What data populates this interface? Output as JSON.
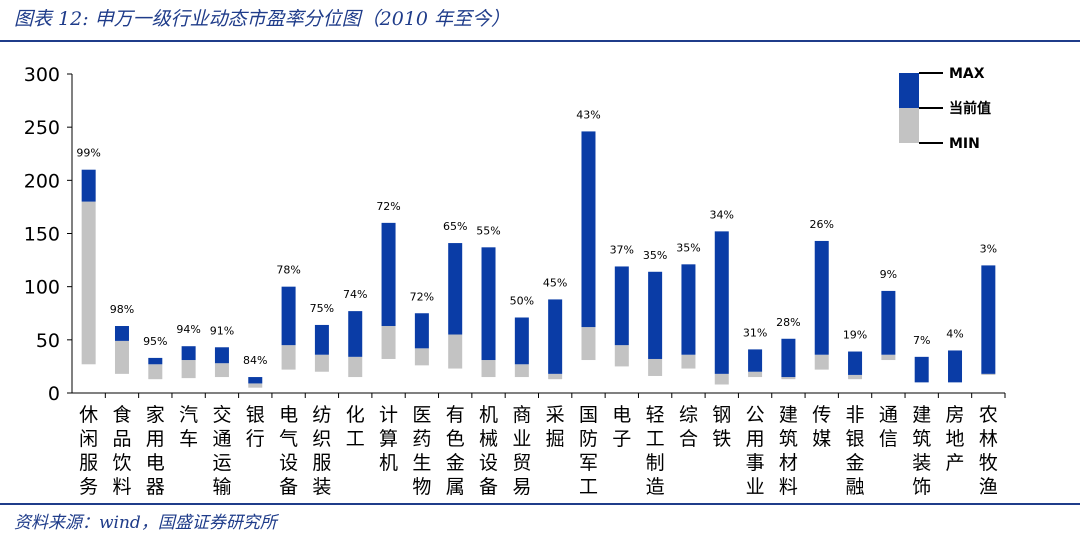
{
  "header": {
    "title": "图表 12:  申万一级行业动态市盈率分位图（2010 年至今）"
  },
  "footer": {
    "source": "资料来源：wind，国盛证券研究所"
  },
  "colors": {
    "max_segment": "#0a3ca6",
    "current_segment": "#c3c3c3",
    "text": "#000000",
    "brand": "#1f3c8a"
  },
  "chart_data": {
    "type": "bar",
    "ylim": [
      0,
      300
    ],
    "yticks": [
      0,
      50,
      100,
      150,
      200,
      250,
      300
    ],
    "legend": {
      "position": "top-right",
      "entries": [
        {
          "key": "max",
          "label": "MAX"
        },
        {
          "key": "current",
          "label": "当前值"
        },
        {
          "key": "min",
          "label": "MIN"
        }
      ]
    },
    "categories": [
      "休闲服务",
      "食品饮料",
      "家用电器",
      "汽车",
      "交通运输",
      "银行",
      "电气设备",
      "纺织服装",
      "化工",
      "计算机",
      "医药生物",
      "有色金属",
      "机械设备",
      "商业贸易",
      "采掘",
      "国防军工",
      "电子",
      "轻工制造",
      "综合",
      "钢铁",
      "公用事业",
      "建筑材料",
      "传媒",
      "非银金融",
      "通信",
      "建筑装饰",
      "房地产",
      "农林牧渔"
    ],
    "min": [
      27,
      18,
      13,
      14,
      15,
      5,
      22,
      20,
      15,
      32,
      26,
      23,
      15,
      15,
      13,
      31,
      25,
      16,
      23,
      8,
      15,
      13,
      22,
      13,
      31,
      10,
      10,
      17
    ],
    "current": [
      180,
      49,
      27,
      31,
      28,
      9,
      45,
      36,
      34,
      63,
      42,
      55,
      31,
      27,
      18,
      62,
      45,
      32,
      36,
      18,
      20,
      15,
      36,
      17,
      36,
      10,
      10,
      18
    ],
    "max": [
      210,
      63,
      33,
      44,
      43,
      15,
      100,
      64,
      77,
      160,
      75,
      141,
      137,
      71,
      88,
      246,
      119,
      114,
      121,
      152,
      41,
      51,
      143,
      39,
      96,
      34,
      40,
      120
    ],
    "percentiles": [
      "99%",
      "98%",
      "95%",
      "94%",
      "91%",
      "84%",
      "78%",
      "75%",
      "74%",
      "72%",
      "72%",
      "65%",
      "55%",
      "50%",
      "45%",
      "43%",
      "37%",
      "35%",
      "35%",
      "34%",
      "31%",
      "28%",
      "26%",
      "19%",
      "9%",
      "7%",
      "4%",
      "3%"
    ]
  }
}
